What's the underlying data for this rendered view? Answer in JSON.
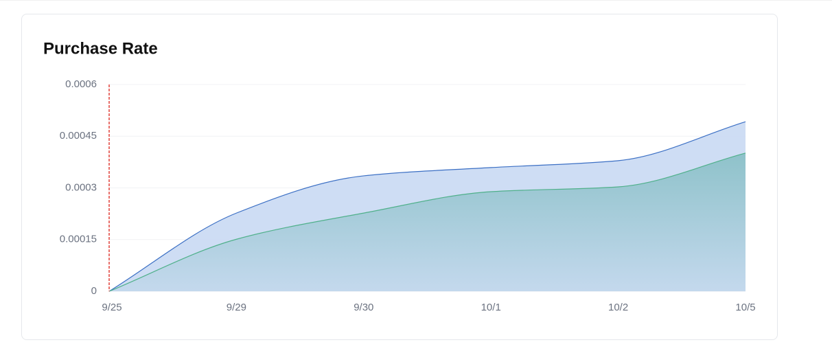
{
  "chart_data": {
    "type": "area",
    "title": "Purchase Rate",
    "categories": [
      "9/25",
      "9/29",
      "9/30",
      "10/1",
      "10/2",
      "10/5"
    ],
    "series": [
      {
        "color": "#3b6fc4",
        "values": [
          0,
          0.000227,
          0.000335,
          0.000359,
          0.000379,
          0.000492
        ]
      },
      {
        "color": "#4fb08a",
        "values": [
          0,
          0.000151,
          0.000227,
          0.000289,
          0.000303,
          0.000401
        ]
      }
    ],
    "ylim": [
      0,
      0.0006
    ],
    "yticks": [
      0,
      0.00015,
      0.0003,
      0.00045,
      0.0006
    ],
    "grid": true
  }
}
